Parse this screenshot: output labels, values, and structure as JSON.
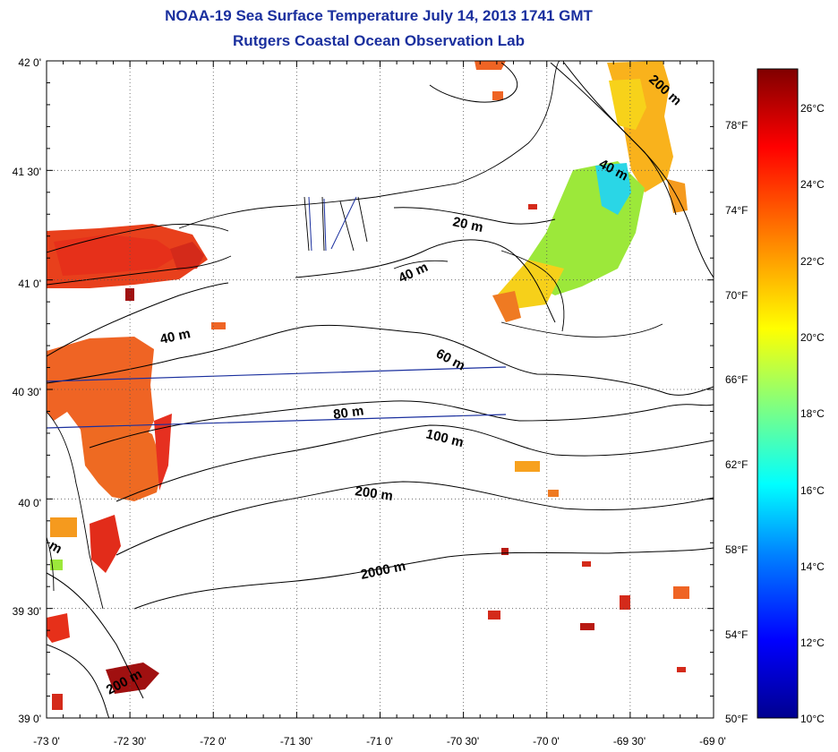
{
  "title": "NOAA-19 Sea Surface Temperature July 14, 2013 1741 GMT",
  "subtitle": "Rutgers Coastal Ocean Observation Lab",
  "map": {
    "lat_labels": [
      "42 0'",
      "41 30'",
      "41 0'",
      "40 30'",
      "40 0'",
      "39 30'",
      "39 0'"
    ],
    "lon_labels": [
      "-73 0'",
      "-72 30'",
      "-72 0'",
      "-71 30'",
      "-71 0'",
      "-70 30'",
      "-70 0'",
      "-69 30'",
      "-69 0'"
    ],
    "lat_range": [
      39.0,
      42.0
    ],
    "lon_range": [
      -73.0,
      -69.0
    ],
    "grid": "dotted",
    "contour_labels": [
      "200 m",
      "40 m",
      "20 m",
      "40 m",
      "40 m",
      "60 m",
      "80 m",
      "100 m",
      "200 m",
      "2000 m",
      "200 m",
      "m"
    ]
  },
  "colorbar": {
    "celsius_labels": [
      "26°C",
      "24°C",
      "22°C",
      "20°C",
      "18°C",
      "16°C",
      "14°C",
      "12°C",
      "10°C"
    ],
    "fahrenheit_labels": [
      "78°F",
      "74°F",
      "70°F",
      "66°F",
      "62°F",
      "58°F",
      "54°F",
      "50°F"
    ],
    "range_c": [
      10,
      27
    ],
    "colors": [
      "#00008f",
      "#0000ff",
      "#0080ff",
      "#00ffff",
      "#80ff80",
      "#ffff00",
      "#ff8000",
      "#ff0000",
      "#800000"
    ]
  }
}
